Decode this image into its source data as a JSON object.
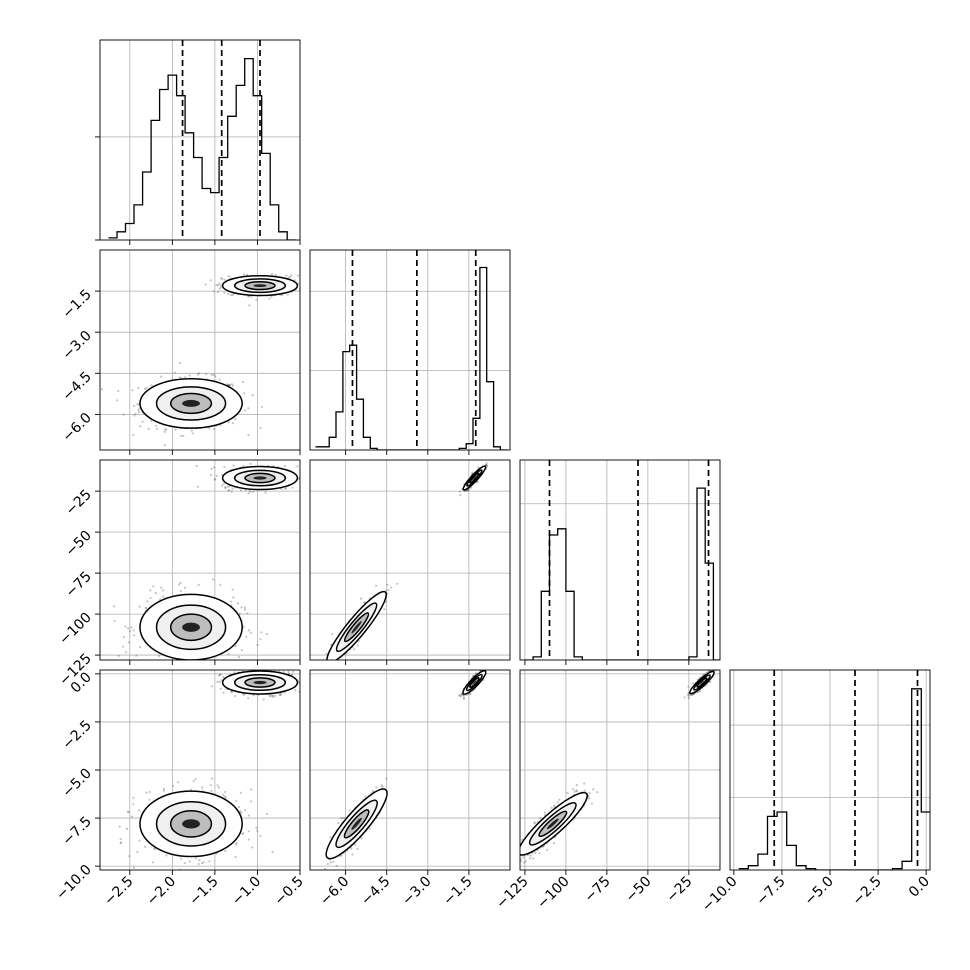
{
  "chart_data": {
    "type": "corner",
    "grid": true,
    "parameter_ranges": [
      [
        -2.85,
        -0.5
      ],
      [
        -7.3,
        0.0
      ],
      [
        -128,
        -6
      ],
      [
        -10.2,
        0.2
      ]
    ],
    "ticks": [
      [
        {
          "v": -2.5,
          "t": "−2.5"
        },
        {
          "v": -2.0,
          "t": "−2.0"
        },
        {
          "v": -1.5,
          "t": "−1.5"
        },
        {
          "v": -1.0,
          "t": "−1.0"
        },
        {
          "v": -0.5,
          "t": "−0.5"
        }
      ],
      [
        {
          "v": -6.0,
          "t": "−6.0"
        },
        {
          "v": -4.5,
          "t": "−4.5"
        },
        {
          "v": -3.0,
          "t": "−3.0"
        },
        {
          "v": -1.5,
          "t": "−1.5"
        }
      ],
      [
        {
          "v": -125,
          "t": "−125"
        },
        {
          "v": -100,
          "t": "−100"
        },
        {
          "v": -75,
          "t": "−75"
        },
        {
          "v": -50,
          "t": "−50"
        },
        {
          "v": -25,
          "t": "−25"
        }
      ],
      [
        {
          "v": -10.0,
          "t": "−10.0"
        },
        {
          "v": -7.5,
          "t": "−7.5"
        },
        {
          "v": -5.0,
          "t": "−5.0"
        },
        {
          "v": -2.5,
          "t": "−2.5"
        },
        {
          "v": 0.0,
          "t": "0.0"
        }
      ]
    ],
    "quantiles": [
      [
        -1.88,
        -1.42,
        -0.97
      ],
      [
        -5.75,
        -3.4,
        -1.25
      ],
      [
        -110,
        -56,
        -13
      ],
      [
        -7.9,
        -3.7,
        -0.45
      ]
    ],
    "histograms": [
      {
        "bins": [
          -2.75,
          -2.65,
          -2.55,
          -2.45,
          -2.35,
          -2.25,
          -2.15,
          -2.05,
          -1.95,
          -1.85,
          -1.75,
          -1.65,
          -1.55,
          -1.45,
          -1.35,
          -1.25,
          -1.15,
          -1.05,
          -0.95,
          -0.85,
          -0.75,
          -0.65,
          -0.55
        ],
        "counts": [
          1,
          4,
          8,
          17,
          33,
          58,
          73,
          80,
          70,
          52,
          40,
          25,
          23,
          40,
          60,
          75,
          88,
          70,
          42,
          17,
          4,
          0
        ],
        "ylim": [
          0,
          97
        ]
      },
      {
        "bins": [
          -7.1,
          -6.85,
          -6.6,
          -6.35,
          -6.1,
          -5.85,
          -5.6,
          -5.35,
          -5.1,
          -4.85,
          -4.6,
          -4.35,
          -4.1,
          -3.85,
          -3.6,
          -3.35,
          -3.1,
          -2.85,
          -2.6,
          -2.35,
          -2.1,
          -1.85,
          -1.6,
          -1.35,
          -1.1,
          -0.85,
          -0.6,
          -0.35,
          -0.1
        ],
        "counts": [
          2,
          2,
          8,
          24,
          62,
          66,
          32,
          8,
          1,
          0,
          0,
          0,
          0,
          0,
          0,
          0,
          0,
          0,
          0,
          0,
          0,
          1,
          4,
          20,
          115,
          43,
          2,
          0
        ],
        "ylim": [
          0,
          126
        ]
      },
      {
        "bins": [
          -125,
          -120,
          -115,
          -110,
          -105,
          -100,
          -95,
          -90,
          -85,
          -80,
          -75,
          -70,
          -65,
          -60,
          -55,
          -50,
          -45,
          -40,
          -35,
          -30,
          -25,
          -20,
          -15,
          -10,
          -5
        ],
        "counts": [
          0,
          1,
          22,
          40,
          42,
          22,
          1,
          0,
          0,
          0,
          0,
          0,
          0,
          0,
          0,
          0,
          0,
          0,
          0,
          0,
          1,
          55,
          31,
          0
        ],
        "ylim": [
          0,
          64
        ]
      },
      {
        "bins": [
          -9.75,
          -9.25,
          -8.75,
          -8.25,
          -7.75,
          -7.25,
          -6.75,
          -6.25,
          -5.75,
          -5.25,
          -4.75,
          -4.25,
          -3.75,
          -3.25,
          -2.75,
          -2.25,
          -1.75,
          -1.25,
          -0.75,
          -0.25,
          0.25
        ],
        "counts": [
          1,
          3,
          11,
          37,
          40,
          17,
          3,
          1,
          0,
          0,
          0,
          0,
          0,
          0,
          0,
          0,
          1,
          6,
          125,
          40
        ],
        "ylim": [
          0,
          138
        ]
      }
    ],
    "clusters": [
      {
        "center": [
          -1.78,
          -5.6,
          -108,
          -7.8
        ],
        "sd": [
          0.3,
          0.45,
          10,
          0.85
        ]
      },
      {
        "center": [
          -0.97,
          -1.3,
          -17,
          -0.45
        ],
        "sd": [
          0.22,
          0.18,
          3.5,
          0.3
        ]
      }
    ],
    "correlations": {
      "1-2": 0.92,
      "1-3": 0.88,
      "2-3": 0.9
    }
  }
}
